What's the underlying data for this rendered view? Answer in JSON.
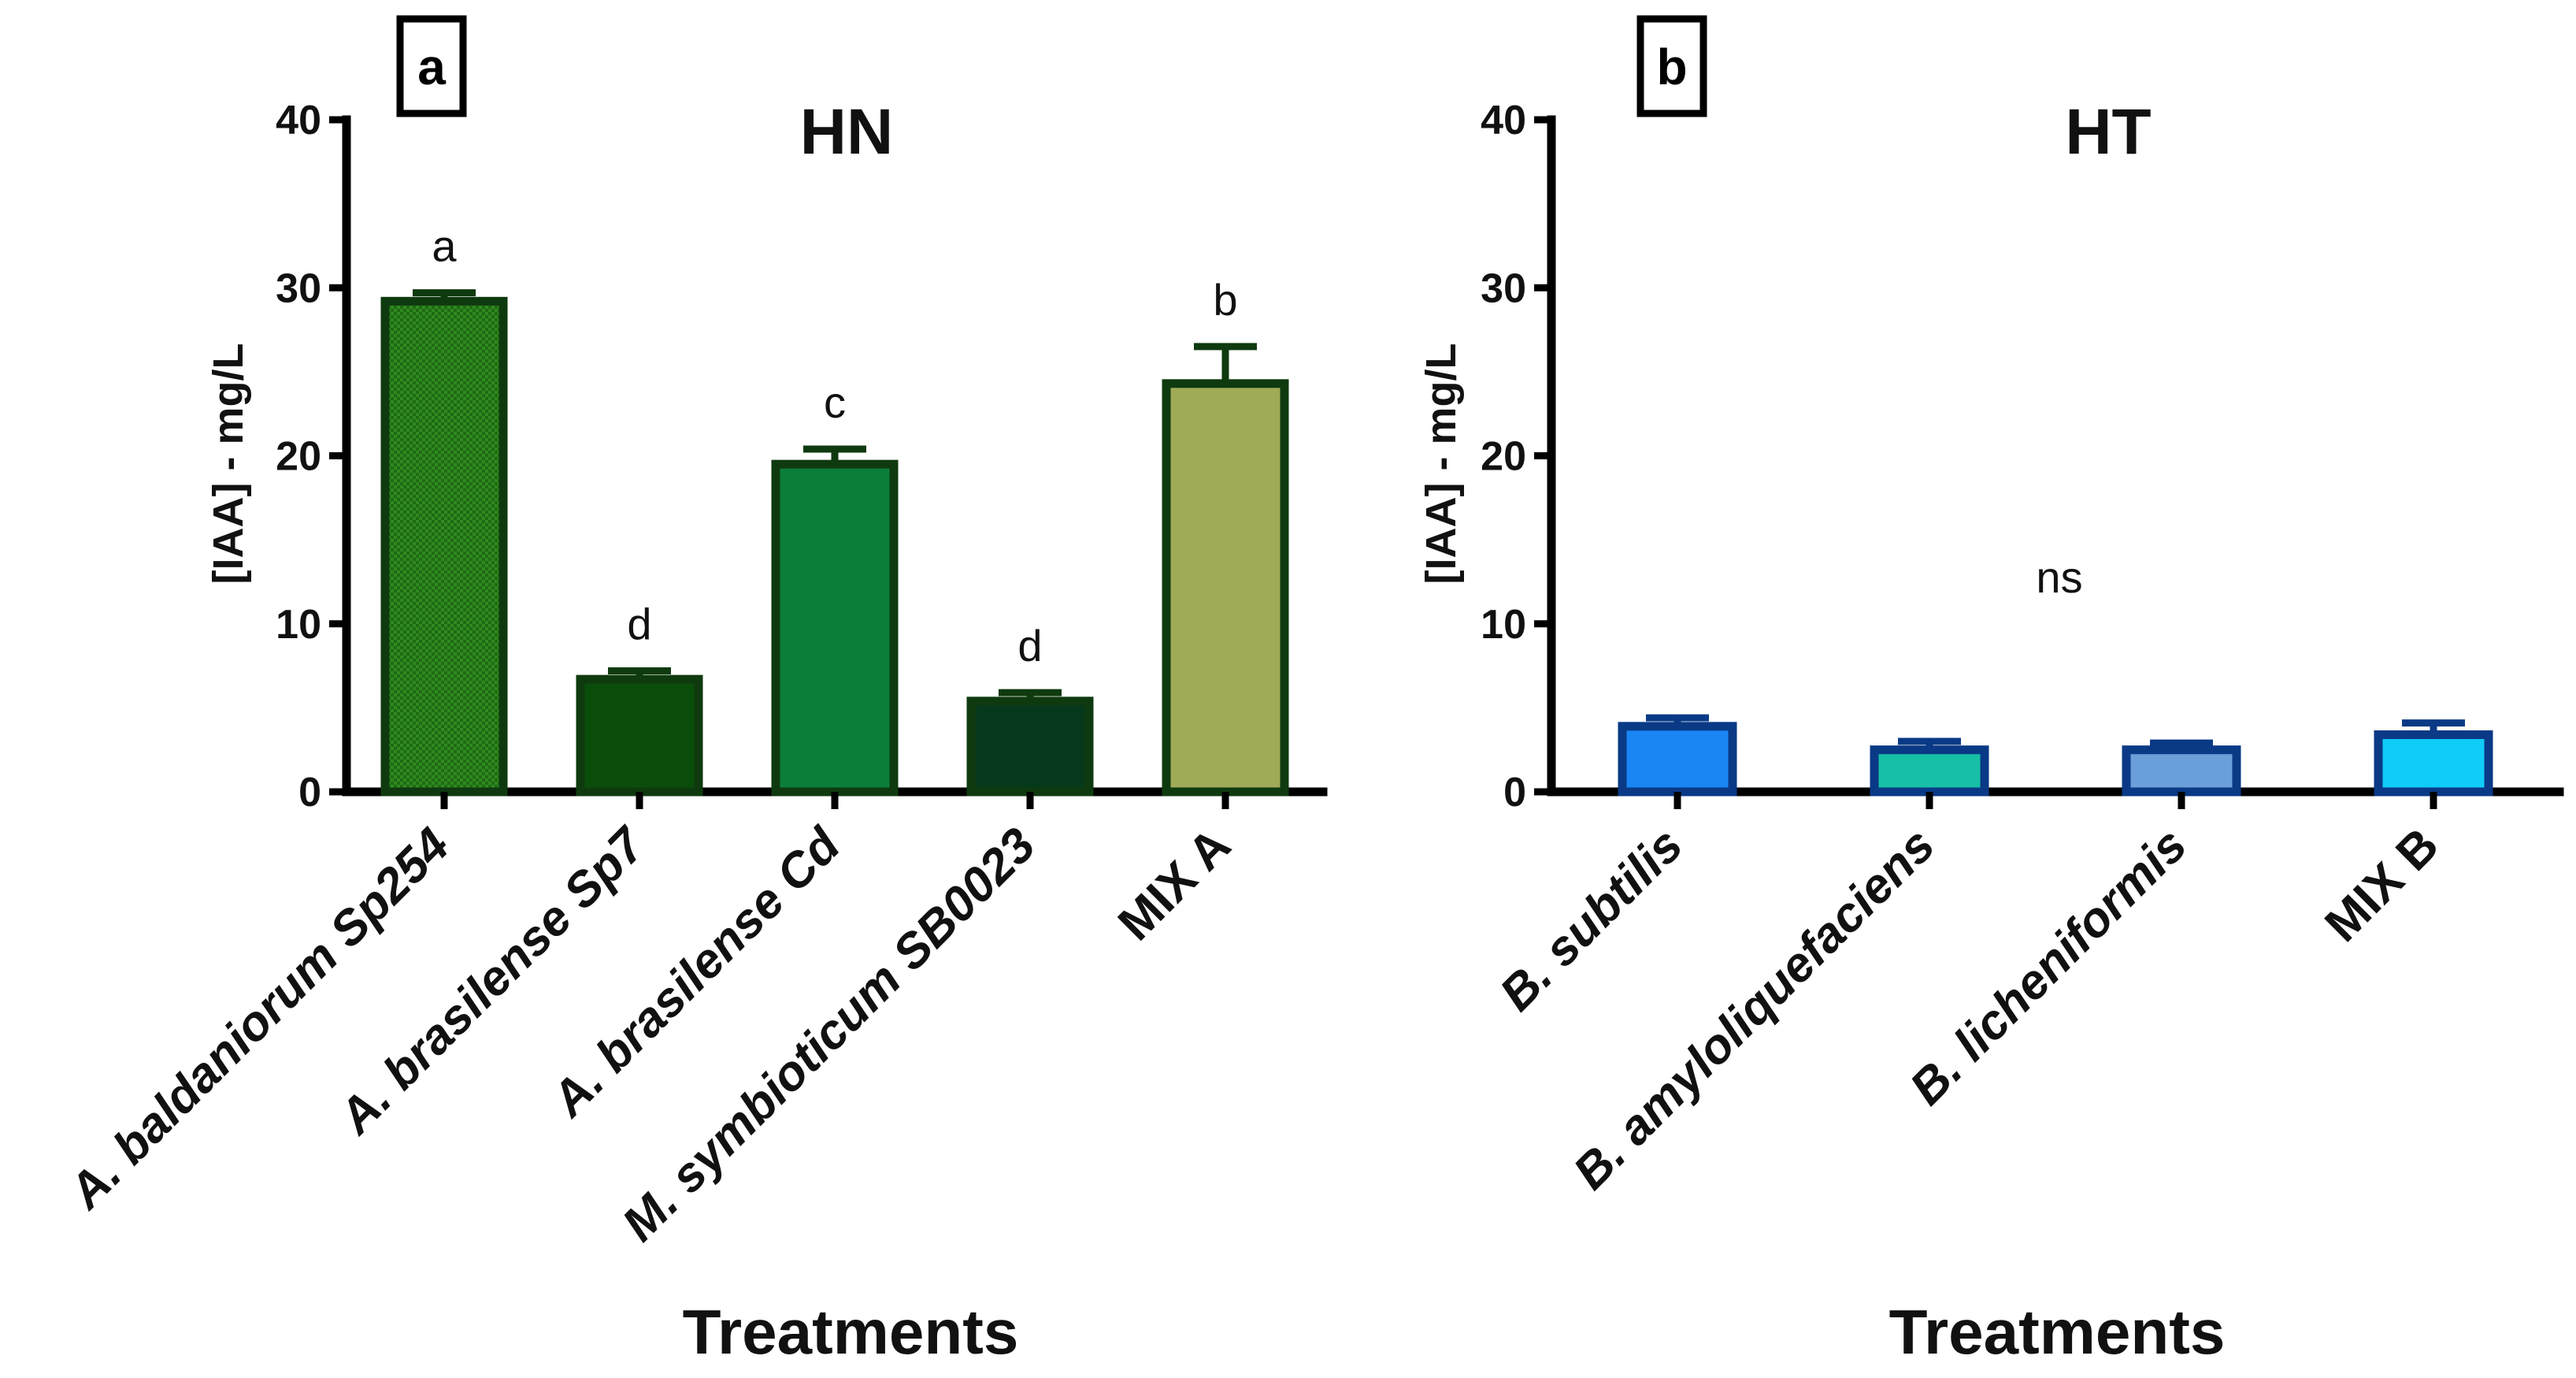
{
  "chart_data": [
    {
      "type": "bar",
      "panel_label": "a",
      "title": "HN",
      "xlabel": "Treatments",
      "ylabel": "[IAA] - mg/L",
      "ylim": [
        0,
        40
      ],
      "yticks": [
        0,
        10,
        20,
        30,
        40
      ],
      "yticklabels": [
        "0",
        "10",
        "20",
        "30",
        "40"
      ],
      "categories": [
        "A. baldaniorum Sp254",
        "A. brasilense Sp7",
        "A. brasilense Cd",
        "M. symbioticum SB0023",
        "MIX A"
      ],
      "category_italic": [
        true,
        true,
        true,
        true,
        false
      ],
      "values": [
        29.2,
        6.7,
        19.5,
        5.4,
        24.3
      ],
      "errors": [
        0.5,
        0.5,
        0.9,
        0.5,
        2.2
      ],
      "significance": [
        "a",
        "d",
        "c",
        "d",
        "b"
      ],
      "bar_colors": [
        "#2d7f1c",
        "#0a4d0a",
        "#0b7e3a",
        "#06391c",
        "#a0ab58"
      ],
      "bar_edge_color": "#0f3a0f",
      "grid": false
    },
    {
      "type": "bar",
      "panel_label": "b",
      "title": "HT",
      "xlabel": "Treatments",
      "ylabel": "[IAA] - mg/L",
      "ylim": [
        0,
        40
      ],
      "yticks": [
        0,
        10,
        20,
        30,
        40
      ],
      "yticklabels": [
        "0",
        "10",
        "20",
        "30",
        "40"
      ],
      "categories": [
        "B. subtilis",
        "B. amyloliquefaciens",
        "B. licheniformis",
        "MIX B"
      ],
      "category_italic": [
        true,
        true,
        true,
        false
      ],
      "values": [
        3.9,
        2.5,
        2.5,
        3.4
      ],
      "errors": [
        0.5,
        0.5,
        0.4,
        0.7
      ],
      "annotation": "ns",
      "bar_colors": [
        "#1a86f4",
        "#17bfa6",
        "#6b9fd9",
        "#10ccf8"
      ],
      "bar_edge_color": "#0a3a86",
      "grid": false
    }
  ]
}
